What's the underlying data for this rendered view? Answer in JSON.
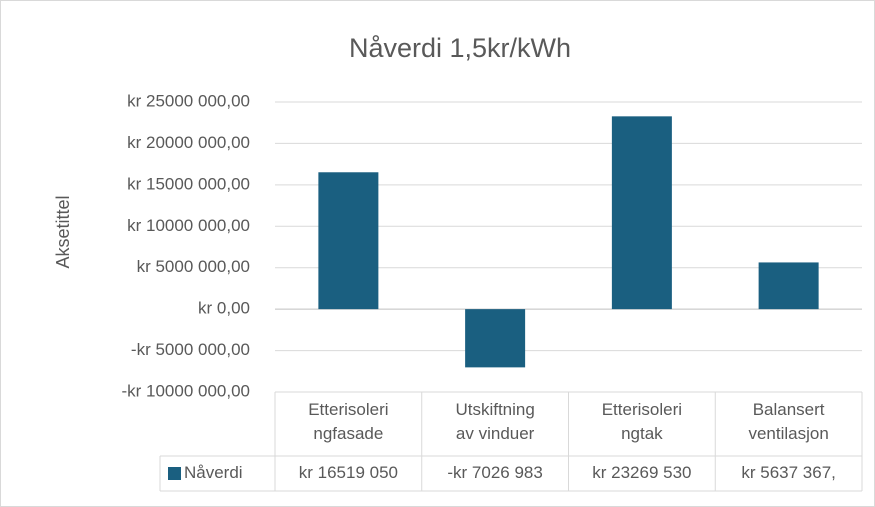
{
  "chart_data": {
    "type": "bar",
    "title": "Nåverdi 1,5kr/kWh",
    "y_label": "Aksetittel",
    "categories": [
      "Etterisoleri\nngfasade",
      "Utskiftning\nav vinduer",
      "Etterisoleri\nngtak",
      "Balansert\nventilasjon"
    ],
    "series": [
      {
        "name": "Nåverdi",
        "color": "#1a5f80",
        "values": [
          16519050,
          -7026983,
          23269530,
          5637367
        ],
        "value_labels": [
          "kr 16519 050",
          "-kr 7026 983",
          "kr 23269 530",
          "kr 5637 367,"
        ]
      }
    ],
    "ylim": [
      -10000000,
      25000000
    ],
    "yticks": [
      {
        "value": -10000000,
        "label": "-kr 10000 000,00"
      },
      {
        "value": -5000000,
        "label": "-kr 5000 000,00"
      },
      {
        "value": 0,
        "label": "kr 0,00"
      },
      {
        "value": 5000000,
        "label": "kr 5000 000,00"
      },
      {
        "value": 10000000,
        "label": "kr 10000 000,00"
      },
      {
        "value": 15000000,
        "label": "kr 15000 000,00"
      },
      {
        "value": 20000000,
        "label": "kr 20000 000,00"
      },
      {
        "value": 25000000,
        "label": "kr 25000 000,00"
      }
    ],
    "grid": true,
    "data_table": true
  }
}
